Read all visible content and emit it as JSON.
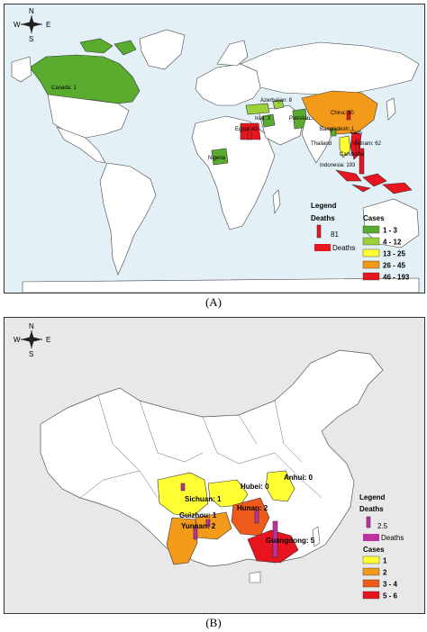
{
  "panelA": {
    "caption": "(A)",
    "compass": {
      "n": "N",
      "s": "S",
      "w": "W",
      "e": "E"
    },
    "labels": {
      "canada": "Canada: 1",
      "azerbaijan": "Azerbaijan: 8",
      "china": "China: 30",
      "iraq": "Iraq: 3",
      "pakistan": "Pakistan",
      "bangladesh": "Bangladesh: 1",
      "egypt": "Egypt: 62",
      "thailand": "Thailand",
      "laos": "Laos",
      "vietnam": "Vietnam: 62",
      "cambodia": "Cambodia",
      "nigeria": "Nigeria",
      "indonesia": "Indonesia: 193"
    },
    "legend": {
      "title": "Legend",
      "deaths_title": "Deaths",
      "deaths_value": "81",
      "deaths_label": "Deaths",
      "cases_title": "Cases",
      "classes": [
        {
          "label": "1 - 3",
          "color": "#5aac2e"
        },
        {
          "label": "4 - 12",
          "color": "#9bd23c"
        },
        {
          "label": "13 - 25",
          "color": "#ffff33"
        },
        {
          "label": "26 - 45",
          "color": "#f39a1a"
        },
        {
          "label": "46 - 193",
          "color": "#e8141e"
        }
      ]
    }
  },
  "panelB": {
    "caption": "(B)",
    "compass": {
      "n": "N",
      "s": "S",
      "w": "W",
      "e": "E"
    },
    "labels": {
      "anhui": "Anhui: 0",
      "hubei": "Hubei: 0",
      "sichuan": "Sichuan: 1",
      "hunan": "Hunan: 2",
      "guizhou": "Guizhou: 1",
      "yunnan": "Yunnan: 2",
      "guangdong": "Guangdong: 5"
    },
    "legend": {
      "title": "Legend",
      "deaths_title": "Deaths",
      "deaths_value": "2.5",
      "deaths_label": "Deaths",
      "cases_title": "Cases",
      "classes": [
        {
          "label": "1",
          "color": "#ffff33"
        },
        {
          "label": "2",
          "color": "#f39a1a"
        },
        {
          "label": "3 - 4",
          "color": "#ee5a1a"
        },
        {
          "label": "5 - 6",
          "color": "#e8141e"
        }
      ]
    }
  },
  "colors": {
    "death_a": "#e8141e",
    "death_b": "#c0309e",
    "ocean": "#e3f1f7",
    "land": "#ffffff"
  }
}
